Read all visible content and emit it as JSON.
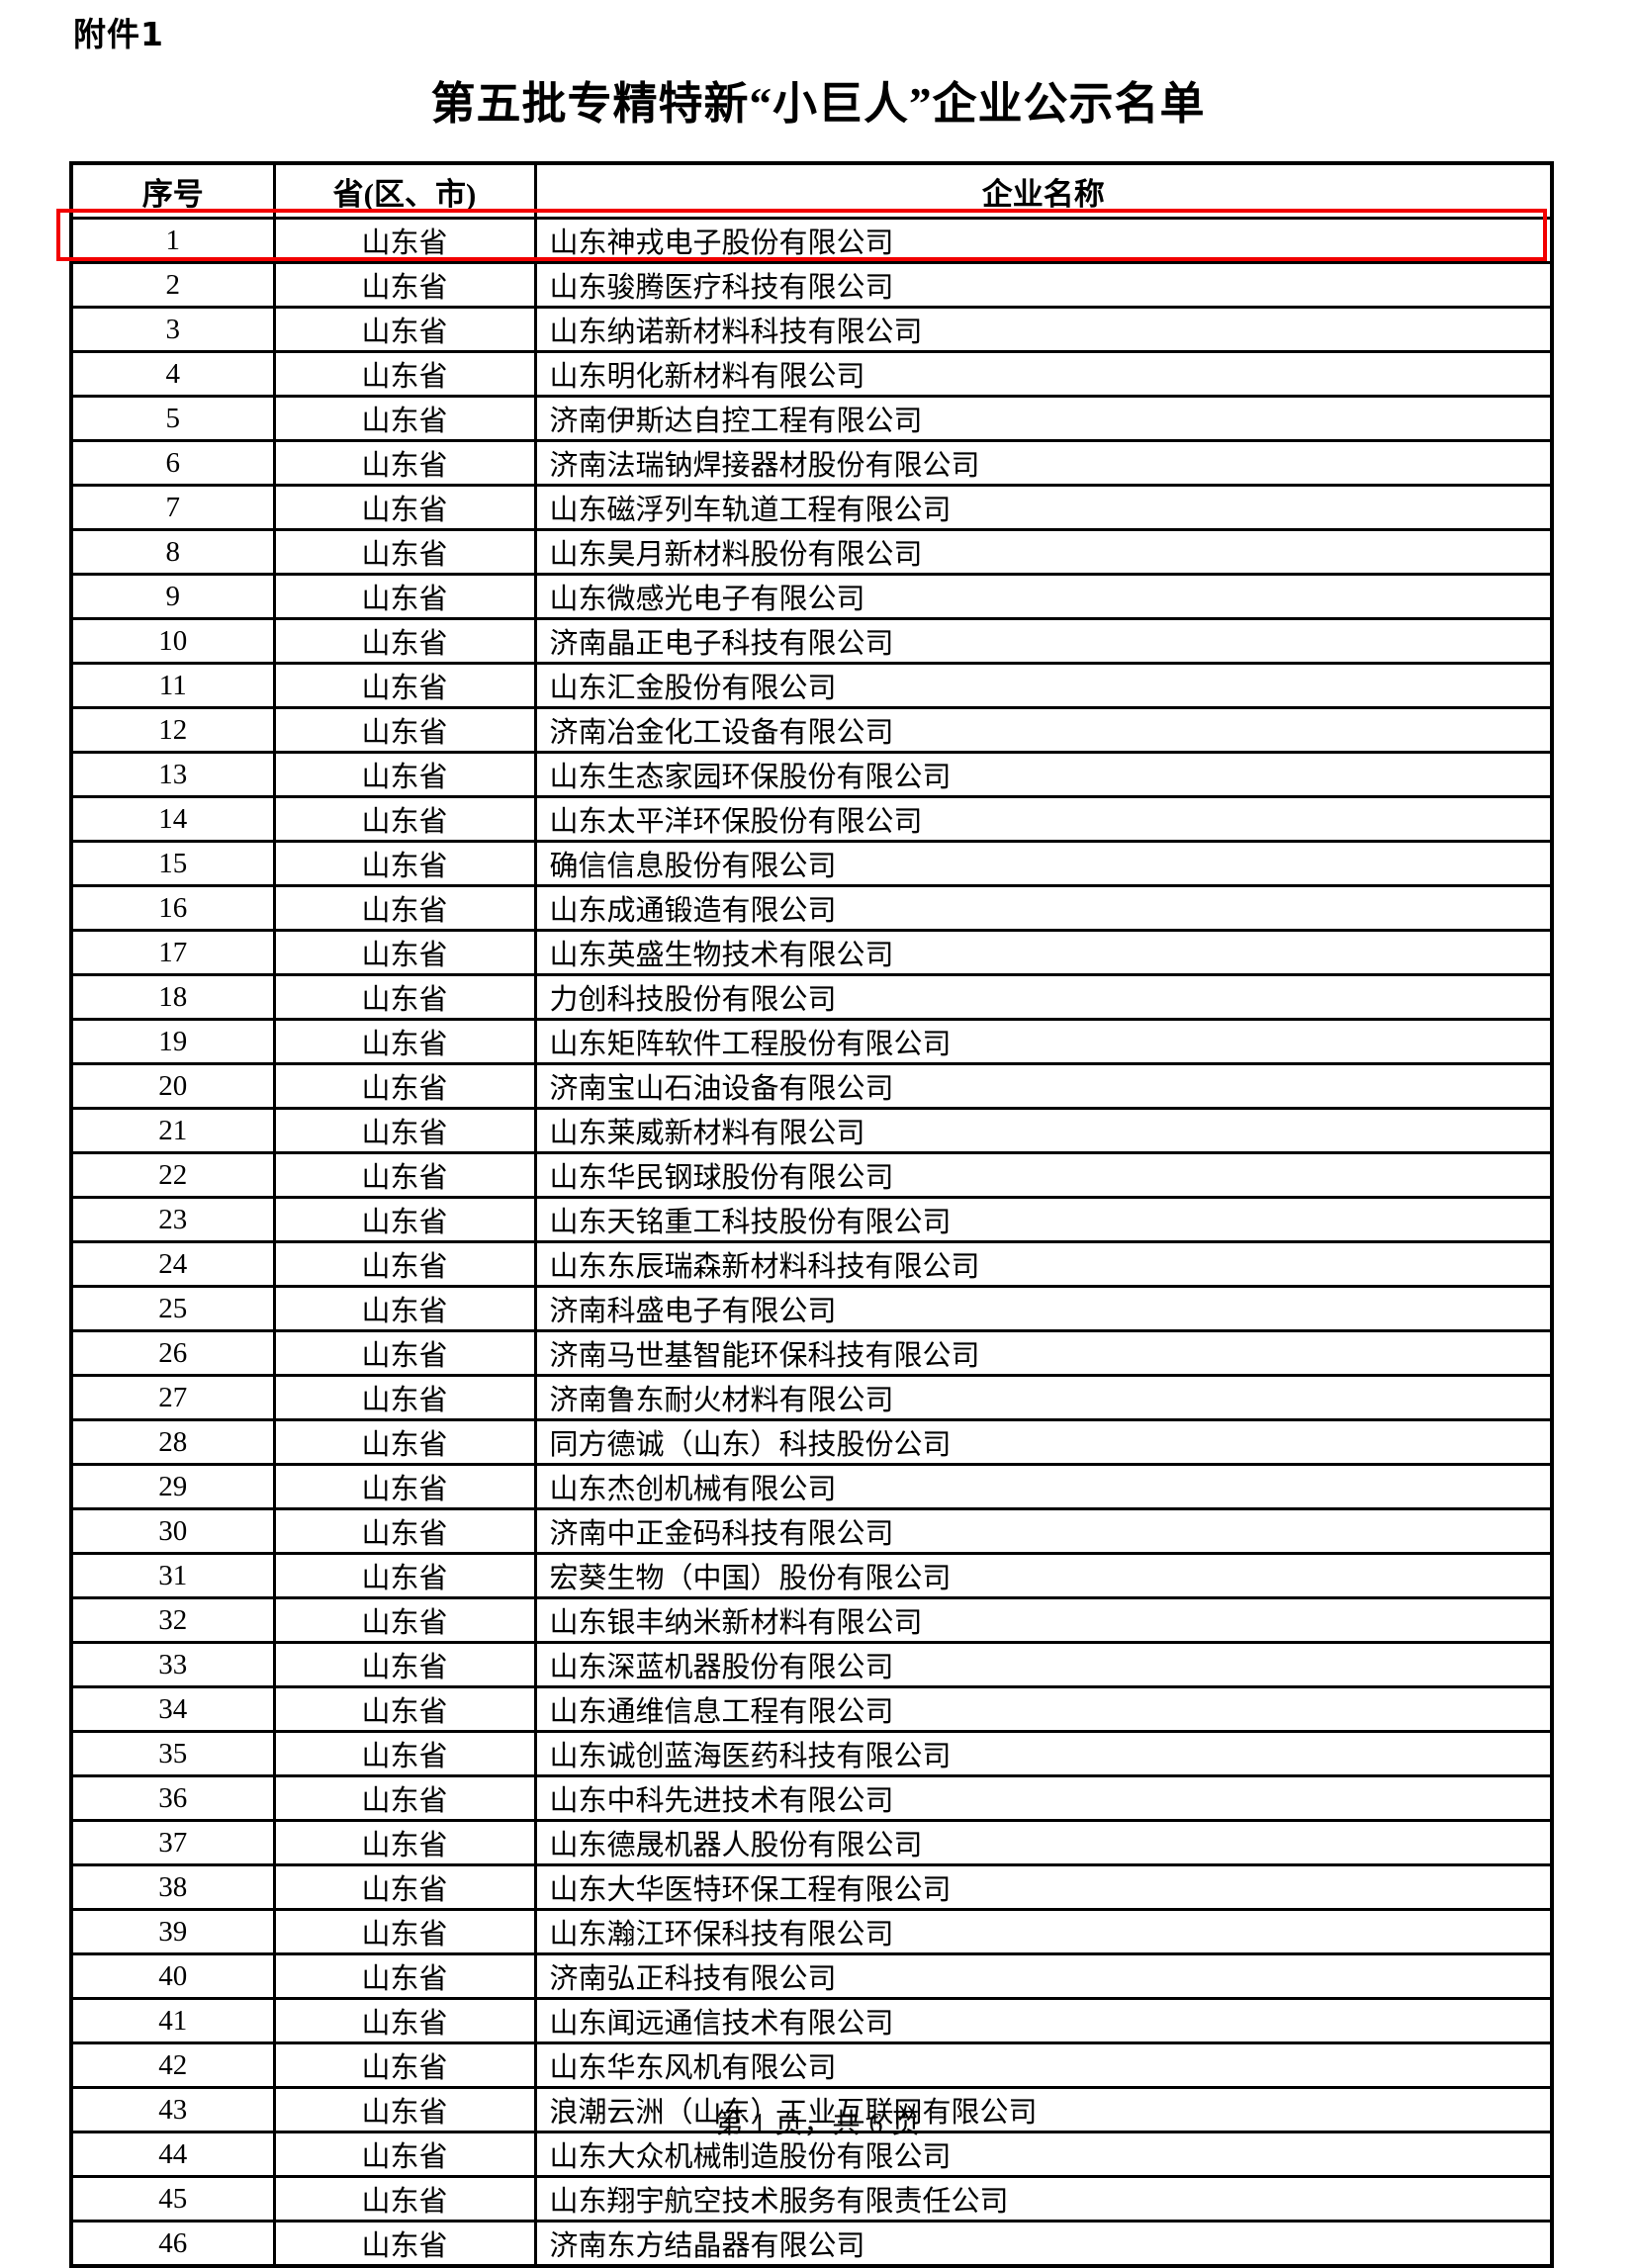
{
  "page": {
    "attachment_label": "附件1",
    "title": "第五批专精特新“小巨人”企业公示名单",
    "footer": "第 1 页，共 6 页"
  },
  "highlight": {
    "row_no": 1,
    "color": "#f20000"
  },
  "table": {
    "headers": [
      "序号",
      "省(区、市)",
      "企业名称"
    ],
    "rows": [
      {
        "no": "1",
        "province": "山东省",
        "company": "山东神戎电子股份有限公司"
      },
      {
        "no": "2",
        "province": "山东省",
        "company": "山东骏腾医疗科技有限公司"
      },
      {
        "no": "3",
        "province": "山东省",
        "company": "山东纳诺新材料科技有限公司"
      },
      {
        "no": "4",
        "province": "山东省",
        "company": "山东明化新材料有限公司"
      },
      {
        "no": "5",
        "province": "山东省",
        "company": "济南伊斯达自控工程有限公司"
      },
      {
        "no": "6",
        "province": "山东省",
        "company": "济南法瑞钠焊接器材股份有限公司"
      },
      {
        "no": "7",
        "province": "山东省",
        "company": "山东磁浮列车轨道工程有限公司"
      },
      {
        "no": "8",
        "province": "山东省",
        "company": "山东昊月新材料股份有限公司"
      },
      {
        "no": "9",
        "province": "山东省",
        "company": "山东微感光电子有限公司"
      },
      {
        "no": "10",
        "province": "山东省",
        "company": "济南晶正电子科技有限公司"
      },
      {
        "no": "11",
        "province": "山东省",
        "company": "山东汇金股份有限公司"
      },
      {
        "no": "12",
        "province": "山东省",
        "company": "济南冶金化工设备有限公司"
      },
      {
        "no": "13",
        "province": "山东省",
        "company": "山东生态家园环保股份有限公司"
      },
      {
        "no": "14",
        "province": "山东省",
        "company": "山东太平洋环保股份有限公司"
      },
      {
        "no": "15",
        "province": "山东省",
        "company": "确信信息股份有限公司"
      },
      {
        "no": "16",
        "province": "山东省",
        "company": "山东成通锻造有限公司"
      },
      {
        "no": "17",
        "province": "山东省",
        "company": "山东英盛生物技术有限公司"
      },
      {
        "no": "18",
        "province": "山东省",
        "company": "力创科技股份有限公司"
      },
      {
        "no": "19",
        "province": "山东省",
        "company": "山东矩阵软件工程股份有限公司"
      },
      {
        "no": "20",
        "province": "山东省",
        "company": "济南宝山石油设备有限公司"
      },
      {
        "no": "21",
        "province": "山东省",
        "company": "山东莱威新材料有限公司"
      },
      {
        "no": "22",
        "province": "山东省",
        "company": "山东华民钢球股份有限公司"
      },
      {
        "no": "23",
        "province": "山东省",
        "company": "山东天铭重工科技股份有限公司"
      },
      {
        "no": "24",
        "province": "山东省",
        "company": "山东东辰瑞森新材料科技有限公司"
      },
      {
        "no": "25",
        "province": "山东省",
        "company": "济南科盛电子有限公司"
      },
      {
        "no": "26",
        "province": "山东省",
        "company": "济南马世基智能环保科技有限公司"
      },
      {
        "no": "27",
        "province": "山东省",
        "company": "济南鲁东耐火材料有限公司"
      },
      {
        "no": "28",
        "province": "山东省",
        "company": "同方德诚（山东）科技股份公司"
      },
      {
        "no": "29",
        "province": "山东省",
        "company": "山东杰创机械有限公司"
      },
      {
        "no": "30",
        "province": "山东省",
        "company": "济南中正金码科技有限公司"
      },
      {
        "no": "31",
        "province": "山东省",
        "company": "宏葵生物（中国）股份有限公司"
      },
      {
        "no": "32",
        "province": "山东省",
        "company": "山东银丰纳米新材料有限公司"
      },
      {
        "no": "33",
        "province": "山东省",
        "company": "山东深蓝机器股份有限公司"
      },
      {
        "no": "34",
        "province": "山东省",
        "company": "山东通维信息工程有限公司"
      },
      {
        "no": "35",
        "province": "山东省",
        "company": "山东诚创蓝海医药科技有限公司"
      },
      {
        "no": "36",
        "province": "山东省",
        "company": "山东中科先进技术有限公司"
      },
      {
        "no": "37",
        "province": "山东省",
        "company": "山东德晟机器人股份有限公司"
      },
      {
        "no": "38",
        "province": "山东省",
        "company": "山东大华医特环保工程有限公司"
      },
      {
        "no": "39",
        "province": "山东省",
        "company": "山东瀚江环保科技有限公司"
      },
      {
        "no": "40",
        "province": "山东省",
        "company": "济南弘正科技有限公司"
      },
      {
        "no": "41",
        "province": "山东省",
        "company": "山东闻远通信技术有限公司"
      },
      {
        "no": "42",
        "province": "山东省",
        "company": "山东华东风机有限公司"
      },
      {
        "no": "43",
        "province": "山东省",
        "company": "浪潮云洲（山东）工业互联网有限公司"
      },
      {
        "no": "44",
        "province": "山东省",
        "company": "山东大众机械制造股份有限公司"
      },
      {
        "no": "45",
        "province": "山东省",
        "company": "山东翔宇航空技术服务有限责任公司"
      },
      {
        "no": "46",
        "province": "山东省",
        "company": "济南东方结晶器有限公司"
      }
    ]
  }
}
